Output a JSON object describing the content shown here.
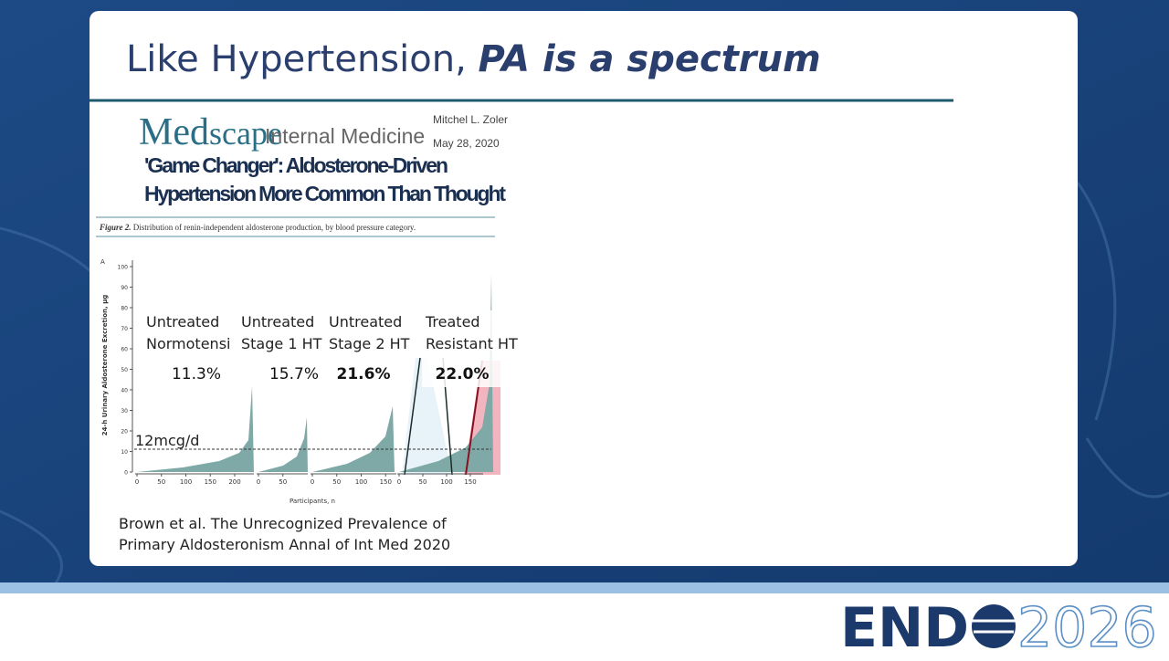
{
  "slide": {
    "title": {
      "plain": "Like Hypertension,",
      "emphasis": "PA is a spectrum"
    },
    "article": {
      "brand_bold": "Med",
      "brand_rest": "scape",
      "section": "Internal Medicine",
      "author": "Mitchel L. Zoler",
      "date": "May 28, 2020",
      "headline": [
        "'Game Changer': Aldosterone-Driven",
        "Hypertension More Common Than Thought"
      ]
    },
    "figure": {
      "caption_label": "Figure 2.",
      "caption": "Distribution of renin-independent aldosterone production, by blood pressure category.",
      "panel_letter": "A",
      "y_label": "24-h Urinary Aldosterone Excretion, µg",
      "x_label": "Participants, n",
      "yticks": [
        0,
        10,
        20,
        30,
        40,
        50,
        60,
        70,
        80,
        90,
        100
      ],
      "threshold": "12mcg/d",
      "panels": [
        {
          "name": [
            "Untreated",
            "Normotensi"
          ],
          "share": "11.3%",
          "xticks": [
            0,
            50,
            100,
            150,
            200
          ]
        },
        {
          "name": [
            "Untreated",
            "Stage 1 HT"
          ],
          "share": "15.7%",
          "xticks": [
            0,
            50
          ]
        },
        {
          "name": [
            "Untreated",
            "Stage 2 HT"
          ],
          "share": "21.6%",
          "xticks": [
            0,
            50,
            100,
            150
          ]
        },
        {
          "name": [
            "Treated",
            "Resistant HT"
          ],
          "share": "22.0%",
          "xticks": [
            0,
            50,
            100,
            150
          ]
        }
      ]
    },
    "citation": [
      "Brown et al. The Unrecognized Prevalence of",
      "Primary Aldosteronism Annal of Int Med 2020"
    ],
    "logo": {
      "main": "END",
      "year": "2026"
    }
  }
}
